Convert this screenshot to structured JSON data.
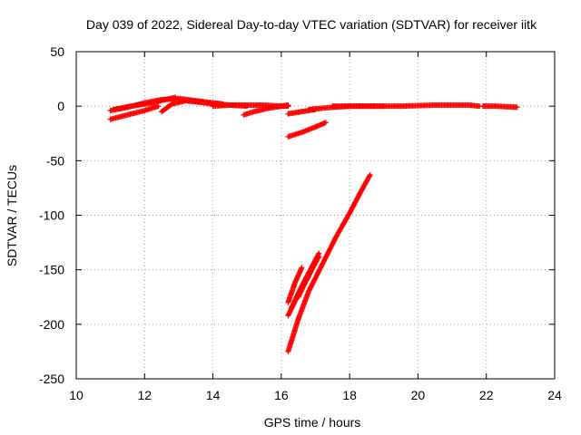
{
  "chart_data": {
    "type": "scatter",
    "title": "Day 039 of 2022, Sidereal Day-to-day VTEC variation (SDTVAR) for receiver iitk",
    "xlabel": "GPS time / hours",
    "ylabel": "SDTVAR / TECUs",
    "xlim": [
      10,
      24
    ],
    "ylim": [
      -250,
      50
    ],
    "xticks": [
      10,
      12,
      14,
      16,
      18,
      20,
      22,
      24
    ],
    "yticks": [
      -250,
      -200,
      -150,
      -100,
      -50,
      0,
      50
    ],
    "grid": true,
    "legend": "none",
    "color": "#ff0000",
    "marker": "plus",
    "tracks": [
      {
        "x": [
          11.0,
          11.5,
          12.0,
          12.5,
          13.0,
          13.5,
          14.0,
          14.3
        ],
        "y": [
          -4,
          -1,
          3,
          6,
          7,
          5,
          3,
          2
        ]
      },
      {
        "x": [
          11.0,
          11.5,
          12.0,
          12.4
        ],
        "y": [
          -12,
          -8,
          -4,
          0
        ]
      },
      {
        "x": [
          11.1,
          11.6,
          12.2,
          12.6,
          12.9
        ],
        "y": [
          -3,
          0,
          3,
          6,
          8
        ]
      },
      {
        "x": [
          12.5,
          12.8,
          13.2,
          13.7
        ],
        "y": [
          -5,
          2,
          5,
          4
        ]
      },
      {
        "x": [
          13.0,
          13.5,
          14.0,
          14.5,
          15.0
        ],
        "y": [
          6,
          4,
          2,
          1,
          0
        ]
      },
      {
        "x": [
          14.0,
          14.5,
          15.0,
          15.5,
          16.0,
          16.2
        ],
        "y": [
          0,
          1,
          1,
          1,
          0,
          0
        ]
      },
      {
        "x": [
          14.9,
          15.2,
          15.6,
          16.0,
          16.2
        ],
        "y": [
          -8,
          -5,
          -2,
          0,
          1
        ]
      },
      {
        "x": [
          16.2,
          16.6,
          17.0
        ],
        "y": [
          -7,
          -5,
          -3
        ]
      },
      {
        "x": [
          16.8,
          17.5,
          18.0,
          18.5,
          19.0
        ],
        "y": [
          -3,
          -1,
          0,
          0,
          0
        ]
      },
      {
        "x": [
          17.5,
          18.5,
          19.5,
          20.5,
          21.5,
          21.8
        ],
        "y": [
          0,
          0,
          0,
          1,
          1,
          0
        ]
      },
      {
        "x": [
          21.9,
          22.3,
          22.9
        ],
        "y": [
          0,
          0,
          -1
        ]
      },
      {
        "x": [
          16.2,
          16.6,
          17.0,
          17.3
        ],
        "y": [
          -28,
          -24,
          -19,
          -15
        ]
      },
      {
        "x": [
          16.2,
          16.5,
          16.8,
          17.2,
          17.6,
          18.0,
          18.3,
          18.6
        ],
        "y": [
          -225,
          -195,
          -170,
          -145,
          -120,
          -98,
          -80,
          -63
        ]
      },
      {
        "x": [
          16.2,
          16.4,
          16.6
        ],
        "y": [
          -180,
          -162,
          -148
        ]
      },
      {
        "x": [
          16.2,
          16.5,
          16.8,
          17.0
        ],
        "y": [
          -192,
          -172,
          -156,
          -142
        ]
      },
      {
        "x": [
          16.3,
          16.6,
          16.9,
          17.1
        ],
        "y": [
          -185,
          -165,
          -147,
          -135
        ]
      },
      {
        "x": [
          16.5,
          16.8,
          17.1
        ],
        "y": [
          -175,
          -155,
          -138
        ]
      }
    ]
  }
}
